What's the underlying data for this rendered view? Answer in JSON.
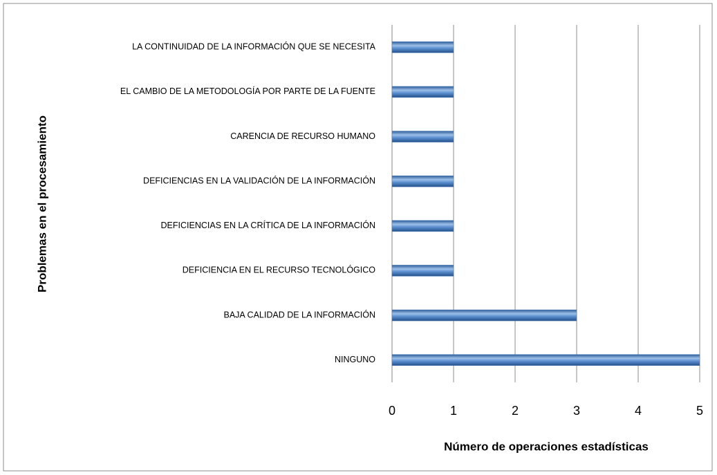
{
  "chart_data": {
    "type": "bar",
    "orientation": "horizontal",
    "x_label": "Número de operaciones estadísticas",
    "y_label": "Problemas en el procesamiento",
    "categories": [
      "LA CONTINUIDAD DE LA INFORMACIÓN QUE SE NECESITA",
      "EL CAMBIO DE LA METODOLOGÍA POR PARTE DE LA FUENTE",
      "CARENCIA DE RECURSO HUMANO",
      "DEFICIENCIAS EN LA VALIDACIÓN DE LA INFORMACIÓN",
      "DEFICIENCIAS EN LA CRÍTICA DE LA INFORMACIÓN",
      "DEFICIENCIA EN EL RECURSO TECNOLÓGICO",
      "BAJA CALIDAD DE LA INFORMACIÓN",
      "NINGUNO"
    ],
    "values": [
      1,
      1,
      1,
      1,
      1,
      1,
      3,
      5
    ],
    "color": "#4a7ebb",
    "xlim": [
      0,
      5
    ],
    "xticks": [
      0,
      1,
      2,
      3,
      4,
      5
    ],
    "grid": true
  }
}
